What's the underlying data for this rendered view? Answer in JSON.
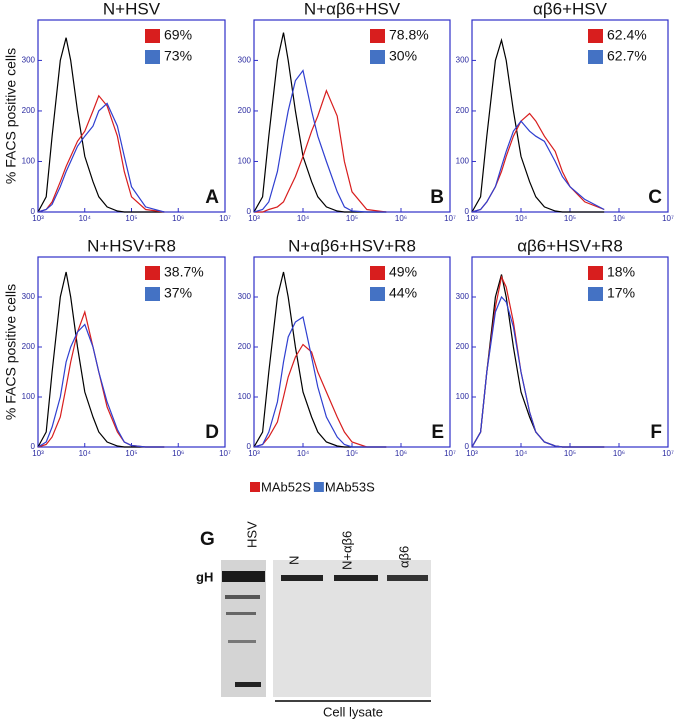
{
  "chart_data": [
    {
      "type": "line",
      "title": "N+HSV",
      "panel": "A",
      "xlog": true,
      "xlim": [
        1000,
        10000000
      ],
      "ylim": [
        0,
        380
      ],
      "xticks": [
        {
          "value": 1000,
          "label": "10³"
        },
        {
          "value": 10000,
          "label": "10⁴"
        },
        {
          "value": 100000,
          "label": "10⁵"
        },
        {
          "value": 1000000,
          "label": "10⁶"
        },
        {
          "value": 10000000,
          "label": "10⁷"
        }
      ],
      "yticks": [
        0,
        100,
        200,
        300
      ],
      "x": [
        1000,
        1500,
        2000,
        3000,
        4000,
        5000,
        7000,
        10000,
        15000,
        20000,
        30000,
        50000,
        70000,
        100000,
        200000,
        500000
      ],
      "series": [
        {
          "color": "#000000",
          "values": [
            0,
            30,
            150,
            300,
            345,
            300,
            200,
            110,
            60,
            30,
            10,
            2,
            0,
            0,
            0,
            0
          ]
        },
        {
          "color": "#d81e1e",
          "values": [
            0,
            5,
            20,
            60,
            90,
            110,
            140,
            160,
            200,
            230,
            210,
            150,
            80,
            30,
            5,
            0
          ]
        },
        {
          "color": "#2f3fd0",
          "values": [
            0,
            5,
            15,
            50,
            80,
            100,
            130,
            150,
            170,
            200,
            215,
            170,
            110,
            50,
            10,
            0
          ]
        }
      ],
      "stats": {
        "values": [
          69,
          73
        ],
        "value_labels": [
          "69%",
          "73%"
        ]
      }
    },
    {
      "type": "line",
      "title": "N+αβ6+HSV",
      "panel": "B",
      "xlog": true,
      "xlim": [
        1000,
        10000000
      ],
      "ylim": [
        0,
        380
      ],
      "xticks": [
        {
          "value": 1000,
          "label": "10³"
        },
        {
          "value": 10000,
          "label": "10⁴"
        },
        {
          "value": 100000,
          "label": "10⁵"
        },
        {
          "value": 1000000,
          "label": "10⁶"
        },
        {
          "value": 10000000,
          "label": "10⁷"
        }
      ],
      "yticks": [
        0,
        100,
        200,
        300
      ],
      "x": [
        1000,
        1500,
        2000,
        3000,
        4000,
        5000,
        7000,
        10000,
        15000,
        20000,
        30000,
        50000,
        70000,
        100000,
        200000,
        500000
      ],
      "series": [
        {
          "color": "#000000",
          "values": [
            0,
            30,
            150,
            300,
            355,
            300,
            200,
            110,
            60,
            30,
            10,
            2,
            0,
            0,
            0,
            0
          ]
        },
        {
          "color": "#d81e1e",
          "values": [
            0,
            0,
            5,
            10,
            20,
            40,
            70,
            110,
            160,
            190,
            240,
            190,
            100,
            40,
            5,
            0
          ]
        },
        {
          "color": "#2f3fd0",
          "values": [
            0,
            5,
            20,
            80,
            150,
            200,
            260,
            280,
            200,
            150,
            100,
            40,
            10,
            2,
            0,
            0
          ]
        }
      ],
      "stats": {
        "values": [
          78.8,
          30
        ],
        "value_labels": [
          "78.8%",
          "30%"
        ]
      }
    },
    {
      "type": "line",
      "title": "αβ6+HSV",
      "panel": "C",
      "xlog": true,
      "xlim": [
        1000,
        10000000
      ],
      "ylim": [
        0,
        380
      ],
      "xticks": [
        {
          "value": 1000,
          "label": "10³"
        },
        {
          "value": 10000,
          "label": "10⁴"
        },
        {
          "value": 100000,
          "label": "10⁵"
        },
        {
          "value": 1000000,
          "label": "10⁶"
        },
        {
          "value": 10000000,
          "label": "10⁷"
        }
      ],
      "yticks": [
        0,
        100,
        200,
        300
      ],
      "x": [
        1000,
        1500,
        2000,
        3000,
        4000,
        5000,
        7000,
        10000,
        15000,
        20000,
        30000,
        50000,
        70000,
        100000,
        200000,
        500000
      ],
      "series": [
        {
          "color": "#000000",
          "values": [
            0,
            30,
            150,
            300,
            340,
            300,
            200,
            110,
            60,
            30,
            10,
            2,
            0,
            0,
            0,
            0
          ]
        },
        {
          "color": "#d81e1e",
          "values": [
            0,
            5,
            20,
            50,
            80,
            110,
            150,
            180,
            195,
            180,
            150,
            120,
            80,
            50,
            20,
            5
          ]
        },
        {
          "color": "#2f3fd0",
          "values": [
            0,
            5,
            20,
            50,
            90,
            120,
            160,
            180,
            160,
            150,
            140,
            100,
            70,
            50,
            25,
            5
          ]
        }
      ],
      "stats": {
        "values": [
          62.4,
          62.7
        ],
        "value_labels": [
          "62.4%",
          "62.7%"
        ]
      }
    },
    {
      "type": "line",
      "title": "N+HSV+R8",
      "panel": "D",
      "xlog": true,
      "xlim": [
        1000,
        10000000
      ],
      "ylim": [
        0,
        380
      ],
      "xticks": [
        {
          "value": 1000,
          "label": "10³"
        },
        {
          "value": 10000,
          "label": "10⁴"
        },
        {
          "value": 100000,
          "label": "10⁵"
        },
        {
          "value": 1000000,
          "label": "10⁶"
        },
        {
          "value": 10000000,
          "label": "10⁷"
        }
      ],
      "yticks": [
        0,
        100,
        200,
        300
      ],
      "x": [
        1000,
        1500,
        2000,
        3000,
        4000,
        5000,
        7000,
        10000,
        15000,
        20000,
        30000,
        50000,
        70000,
        100000,
        200000,
        500000
      ],
      "series": [
        {
          "color": "#000000",
          "values": [
            0,
            30,
            150,
            300,
            350,
            300,
            200,
            110,
            60,
            30,
            10,
            2,
            0,
            0,
            0,
            0
          ]
        },
        {
          "color": "#d81e1e",
          "values": [
            0,
            5,
            20,
            60,
            120,
            170,
            230,
            270,
            200,
            150,
            80,
            30,
            10,
            3,
            0,
            0
          ]
        },
        {
          "color": "#2f3fd0",
          "values": [
            0,
            10,
            40,
            100,
            170,
            200,
            230,
            245,
            200,
            150,
            90,
            35,
            10,
            3,
            0,
            0
          ]
        }
      ],
      "stats": {
        "values": [
          38.7,
          37
        ],
        "value_labels": [
          "38.7%",
          "37%"
        ]
      }
    },
    {
      "type": "line",
      "title": "N+αβ6+HSV+R8",
      "panel": "E",
      "xlog": true,
      "xlim": [
        1000,
        10000000
      ],
      "ylim": [
        0,
        380
      ],
      "xticks": [
        {
          "value": 1000,
          "label": "10³"
        },
        {
          "value": 10000,
          "label": "10⁴"
        },
        {
          "value": 100000,
          "label": "10⁵"
        },
        {
          "value": 1000000,
          "label": "10⁶"
        },
        {
          "value": 10000000,
          "label": "10⁷"
        }
      ],
      "yticks": [
        0,
        100,
        200,
        300
      ],
      "x": [
        1000,
        1500,
        2000,
        3000,
        4000,
        5000,
        7000,
        10000,
        15000,
        20000,
        30000,
        50000,
        70000,
        100000,
        200000,
        500000
      ],
      "series": [
        {
          "color": "#000000",
          "values": [
            0,
            30,
            150,
            300,
            350,
            300,
            200,
            110,
            60,
            30,
            10,
            2,
            0,
            0,
            0,
            0
          ]
        },
        {
          "color": "#d81e1e",
          "values": [
            0,
            5,
            20,
            50,
            100,
            140,
            180,
            205,
            190,
            150,
            110,
            60,
            30,
            10,
            0,
            0
          ]
        },
        {
          "color": "#2f3fd0",
          "values": [
            0,
            5,
            30,
            90,
            170,
            220,
            250,
            260,
            180,
            120,
            60,
            20,
            5,
            0,
            0,
            0
          ]
        }
      ],
      "stats": {
        "values": [
          49,
          44
        ],
        "value_labels": [
          "49%",
          "44%"
        ]
      }
    },
    {
      "type": "line",
      "title": "αβ6+HSV+R8",
      "panel": "F",
      "xlog": true,
      "xlim": [
        1000,
        10000000
      ],
      "ylim": [
        0,
        380
      ],
      "xticks": [
        {
          "value": 1000,
          "label": "10³"
        },
        {
          "value": 10000,
          "label": "10⁴"
        },
        {
          "value": 100000,
          "label": "10⁵"
        },
        {
          "value": 1000000,
          "label": "10⁶"
        },
        {
          "value": 10000000,
          "label": "10⁷"
        }
      ],
      "yticks": [
        0,
        100,
        200,
        300
      ],
      "x": [
        1000,
        1500,
        2000,
        3000,
        4000,
        5000,
        7000,
        10000,
        15000,
        20000,
        30000,
        50000,
        70000,
        100000,
        200000,
        500000
      ],
      "series": [
        {
          "color": "#000000",
          "values": [
            0,
            30,
            150,
            300,
            345,
            300,
            200,
            110,
            60,
            30,
            10,
            2,
            0,
            0,
            0,
            0
          ]
        },
        {
          "color": "#d81e1e",
          "values": [
            0,
            30,
            150,
            280,
            340,
            320,
            250,
            150,
            70,
            30,
            10,
            2,
            0,
            0,
            0,
            0
          ]
        },
        {
          "color": "#2f3fd0",
          "values": [
            0,
            30,
            150,
            270,
            300,
            290,
            240,
            150,
            70,
            30,
            10,
            2,
            0,
            0,
            0,
            0
          ]
        }
      ],
      "stats": {
        "values": [
          18,
          17
        ],
        "value_labels": [
          "18%",
          "17%"
        ]
      }
    }
  ],
  "figure": {
    "y_label": "% FACS positive cells",
    "legend": [
      {
        "name": "MAb52S",
        "color": "#d81e1e"
      },
      {
        "name": "MAb53S",
        "color": "#4472c4"
      }
    ]
  },
  "blot": {
    "panel": "G",
    "band_label": "gH",
    "lanes": [
      "HSV",
      "N",
      "N+αβ6",
      "αβ6"
    ],
    "group_label": "Cell lysate"
  }
}
